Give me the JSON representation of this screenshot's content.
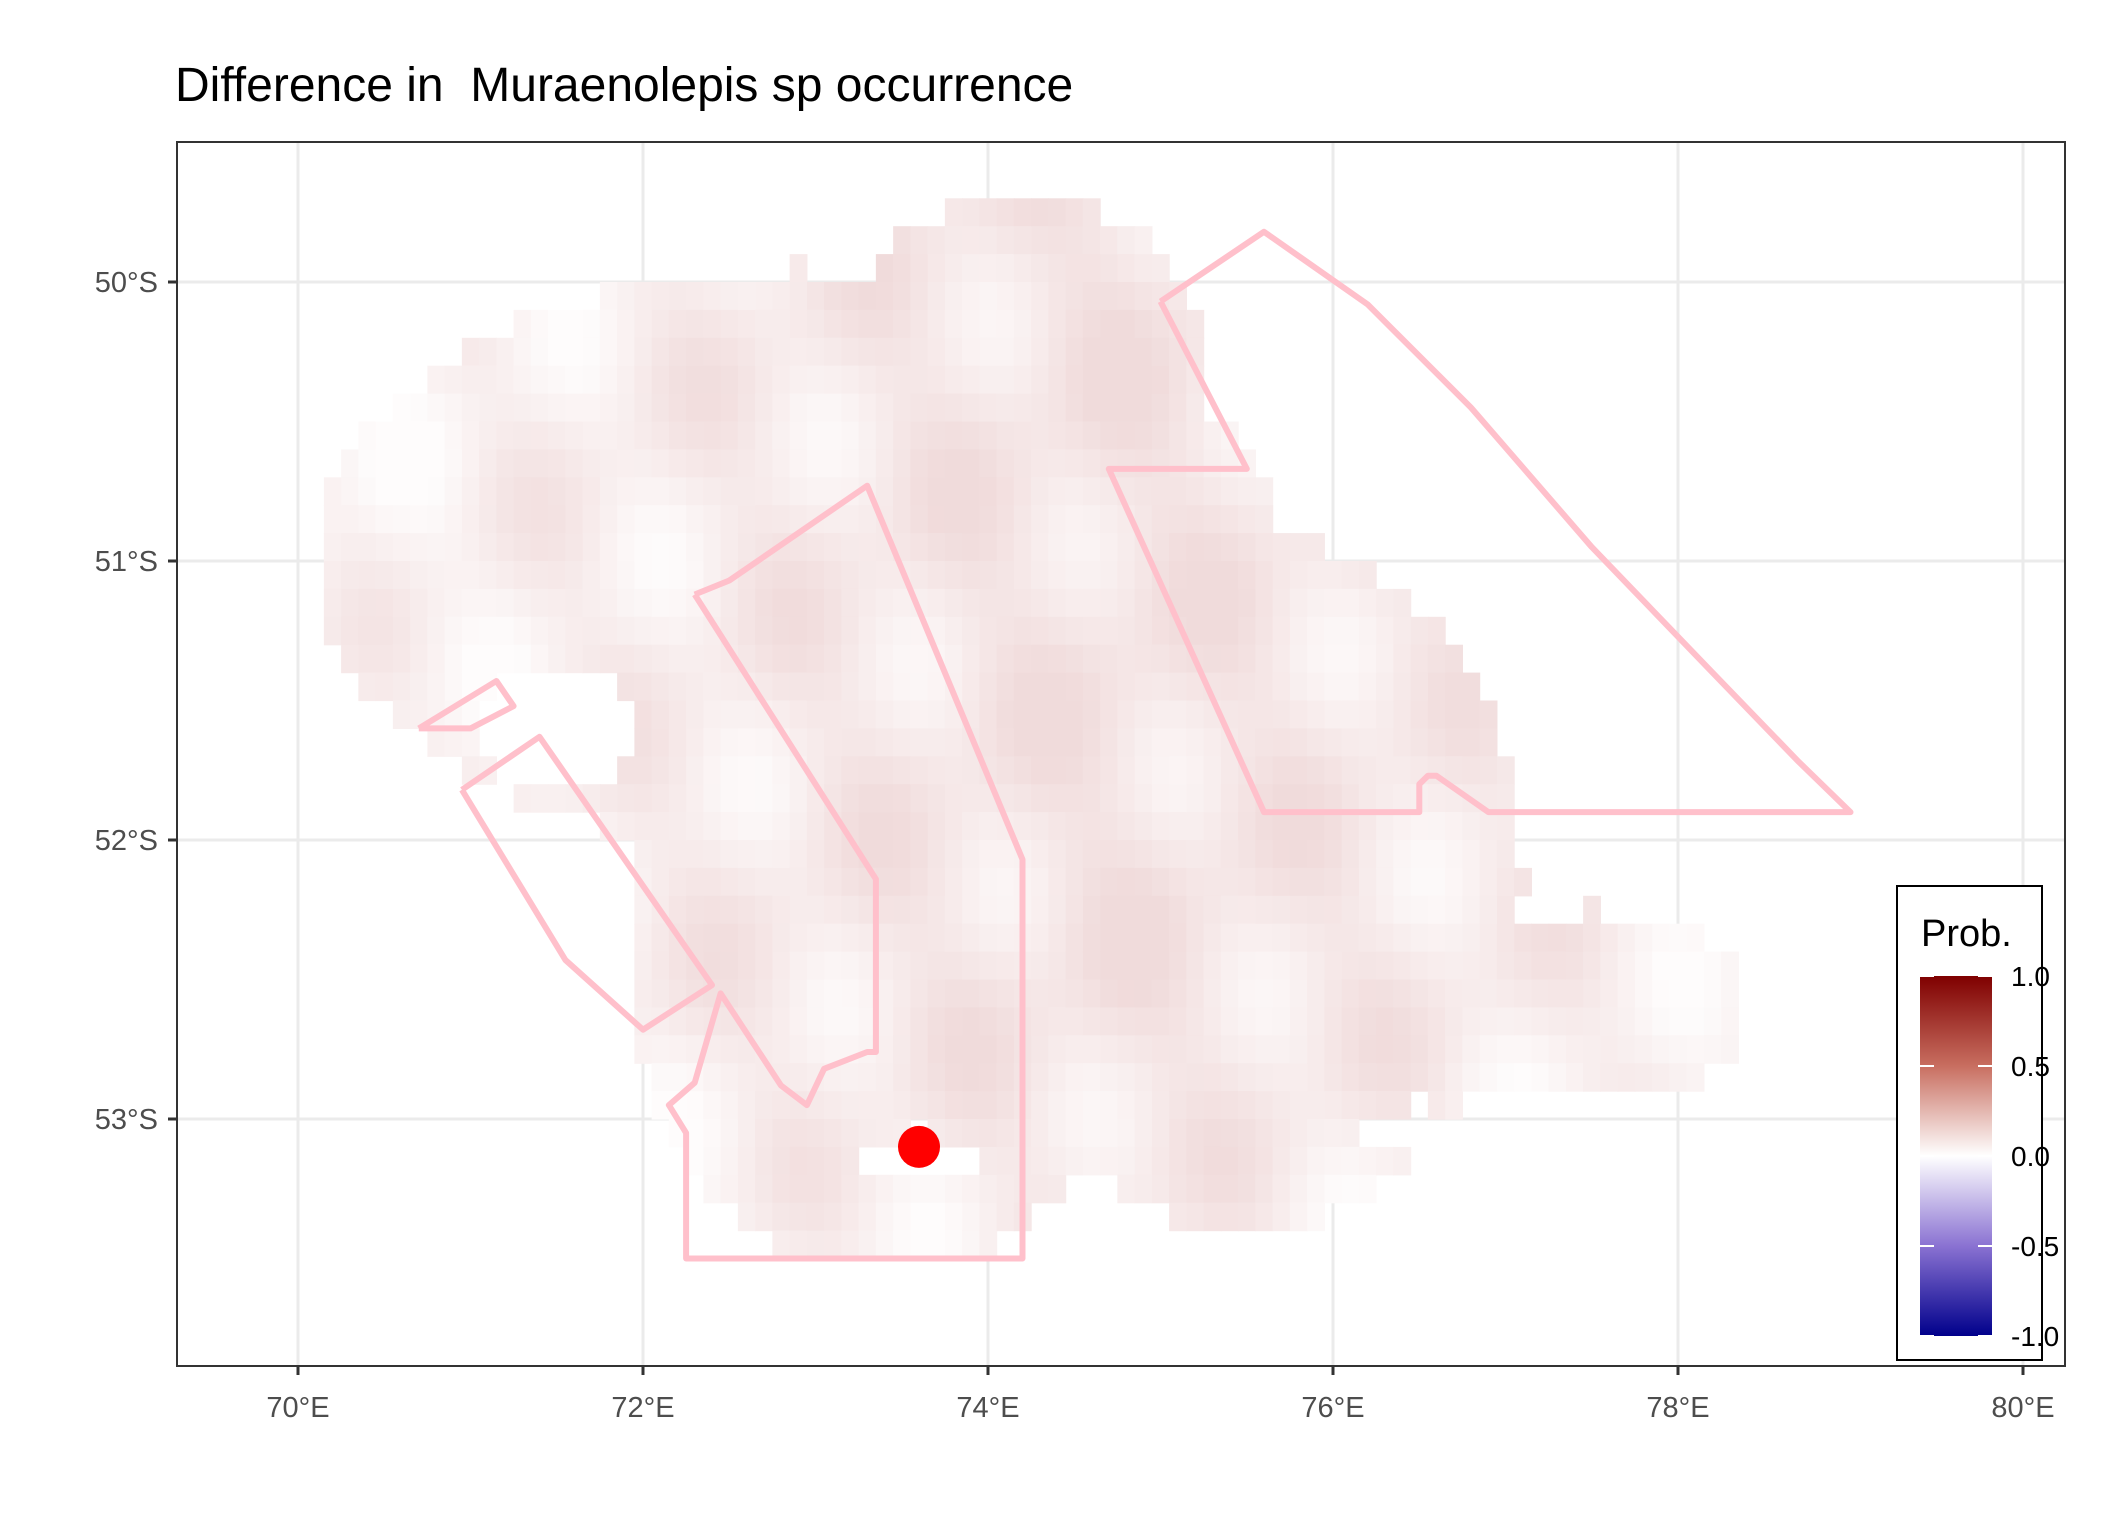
{
  "title": "Difference in  Muraenolepis sp occurrence",
  "x_ticks": [
    "70°E",
    "72°E",
    "74°E",
    "76°E",
    "78°E",
    "80°E"
  ],
  "y_ticks": [
    "50°S",
    "51°S",
    "52°S",
    "53°S"
  ],
  "legend": {
    "title": "Prob.",
    "labels": [
      "1.0",
      "0.5",
      "0.0",
      "-0.5",
      "-1.0"
    ],
    "colors": {
      "high": "#7f0000",
      "mid": "#ffffff",
      "low": "#00008b"
    }
  },
  "chart_data": {
    "type": "heatmap",
    "title": "Difference in  Muraenolepis sp occurrence",
    "xlim_lon": [
      69.3,
      80.3
    ],
    "ylim_lat": [
      -53.9,
      -49.5
    ],
    "x_tick_values": [
      70,
      72,
      74,
      76,
      78,
      80
    ],
    "y_tick_values": [
      -50,
      -51,
      -52,
      -53
    ],
    "grid": true,
    "legend_placement": "bottom-right",
    "color_scale": {
      "min": -1.0,
      "max": 1.0,
      "low": "#00008b",
      "mid": "#ffffff",
      "high": "#7f0000"
    },
    "boundary_color": "#ffc0cb",
    "point": {
      "lon": 73.6,
      "lat": -53.1,
      "color": "#ff0000"
    },
    "raster_value_range": [
      0.0,
      0.25
    ],
    "boundaries": [
      {
        "name": "west-small",
        "lon": [
          70.7,
          71.15,
          71.25,
          71.0,
          70.7
        ],
        "lat": [
          -51.6,
          -51.43,
          -51.52,
          -51.6,
          -51.6
        ]
      },
      {
        "name": "west-diagonal",
        "lon": [
          70.95,
          71.4,
          72.4,
          72.0,
          71.55,
          70.95
        ],
        "lat": [
          -51.82,
          -51.63,
          -52.52,
          -52.68,
          -52.43,
          -51.82
        ]
      },
      {
        "name": "central",
        "lon": [
          72.3,
          72.5,
          73.3,
          74.2,
          74.2,
          72.25,
          72.25,
          72.15,
          72.3,
          72.45,
          72.8,
          72.95,
          73.05,
          73.3,
          73.35,
          73.35,
          72.3
        ],
        "lat": [
          -51.12,
          -51.07,
          -50.73,
          -52.07,
          -53.5,
          -53.5,
          -53.05,
          -52.95,
          -52.87,
          -52.55,
          -52.88,
          -52.95,
          -52.82,
          -52.76,
          -52.76,
          -52.14,
          -51.12
        ]
      },
      {
        "name": "east-fan",
        "lon": [
          75.0,
          75.6,
          76.2,
          76.8,
          77.5,
          78.2,
          78.7,
          79.0,
          76.9,
          76.6,
          76.55,
          76.5,
          76.5,
          75.6,
          74.7,
          75.5,
          75.0
        ],
        "lat": [
          -50.07,
          -49.82,
          -50.08,
          -50.45,
          -50.95,
          -51.4,
          -51.72,
          -51.9,
          -51.9,
          -51.77,
          -51.77,
          -51.8,
          -51.9,
          -51.9,
          -50.67,
          -50.67,
          -50.07
        ]
      }
    ]
  }
}
